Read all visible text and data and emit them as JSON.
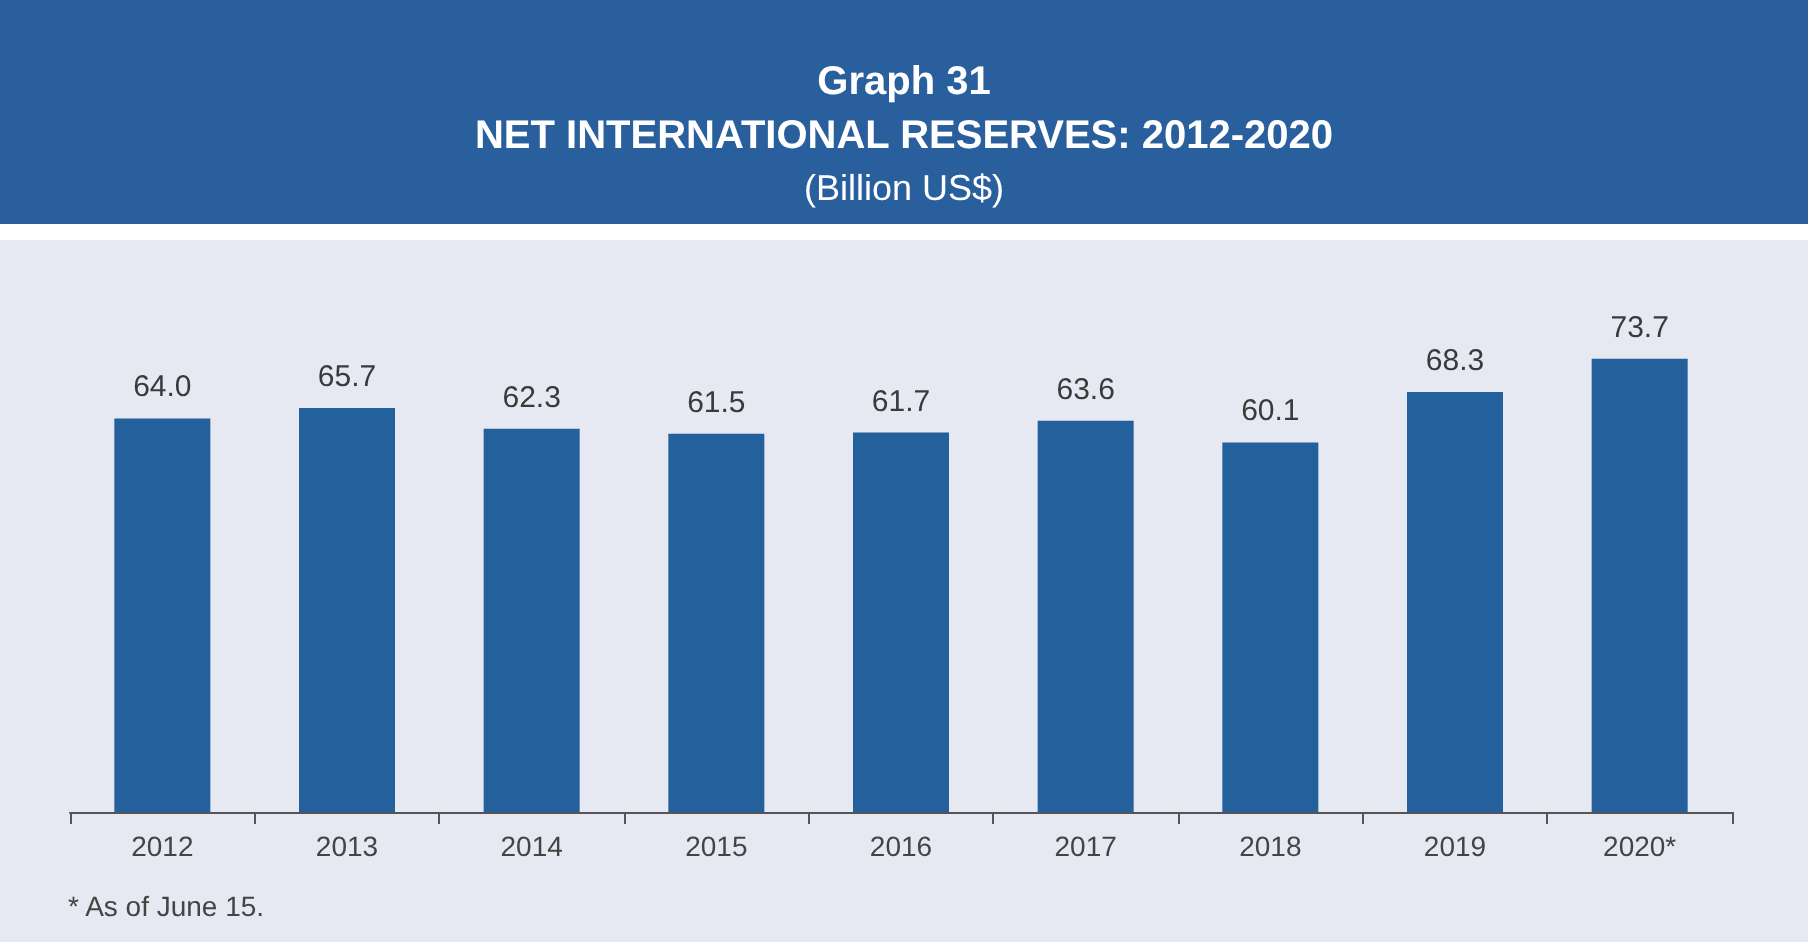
{
  "chart_data": {
    "type": "bar",
    "title": "Graph 31\nNET INTERNATIONAL RESERVES: 2012-2020",
    "subtitle": "(Billion US$)",
    "categories": [
      "2012",
      "2013",
      "2014",
      "2015",
      "2016",
      "2017",
      "2018",
      "2019",
      "2020*"
    ],
    "values": [
      64.0,
      65.7,
      62.3,
      61.5,
      61.7,
      63.6,
      60.1,
      68.3,
      73.7
    ],
    "color": "#23609c",
    "value_labels": [
      "64.0",
      "65.7",
      "62.3",
      "61.5",
      "61.7",
      "63.6",
      "60.1",
      "68.3",
      "73.7"
    ],
    "annotations": [
      "* As of June 15."
    ]
  }
}
